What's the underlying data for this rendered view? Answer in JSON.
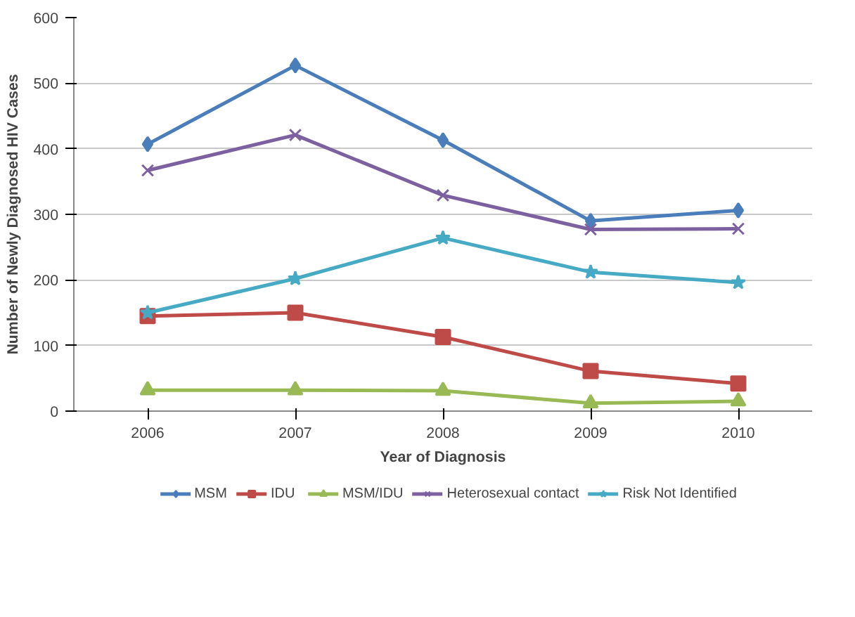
{
  "chart_data": {
    "type": "line",
    "xlabel": "Year of Diagnosis",
    "ylabel": "Number of Newly Diagnosed HIV Cases",
    "categories": [
      "2006",
      "2007",
      "2008",
      "2009",
      "2010"
    ],
    "ylim": [
      0,
      600
    ],
    "yticks": [
      0,
      100,
      200,
      300,
      400,
      500,
      600
    ],
    "grid": "y",
    "legend": "bottom",
    "series": [
      {
        "name": "MSM",
        "color": "#4a7ebb",
        "marker": "diamond",
        "values": [
          407,
          527,
          413,
          290,
          306
        ]
      },
      {
        "name": "IDU",
        "color": "#be4b48",
        "marker": "square",
        "values": [
          145,
          150,
          113,
          61,
          42
        ]
      },
      {
        "name": "MSM/IDU",
        "color": "#98b954",
        "marker": "triangle",
        "values": [
          32,
          32,
          31,
          12,
          15
        ]
      },
      {
        "name": "Heterosexual contact",
        "color": "#7d60a0",
        "marker": "cross",
        "values": [
          367,
          421,
          329,
          277,
          278
        ]
      },
      {
        "name": "Risk Not Identified",
        "color": "#46aac5",
        "marker": "star",
        "values": [
          150,
          202,
          264,
          212,
          196
        ]
      }
    ]
  }
}
